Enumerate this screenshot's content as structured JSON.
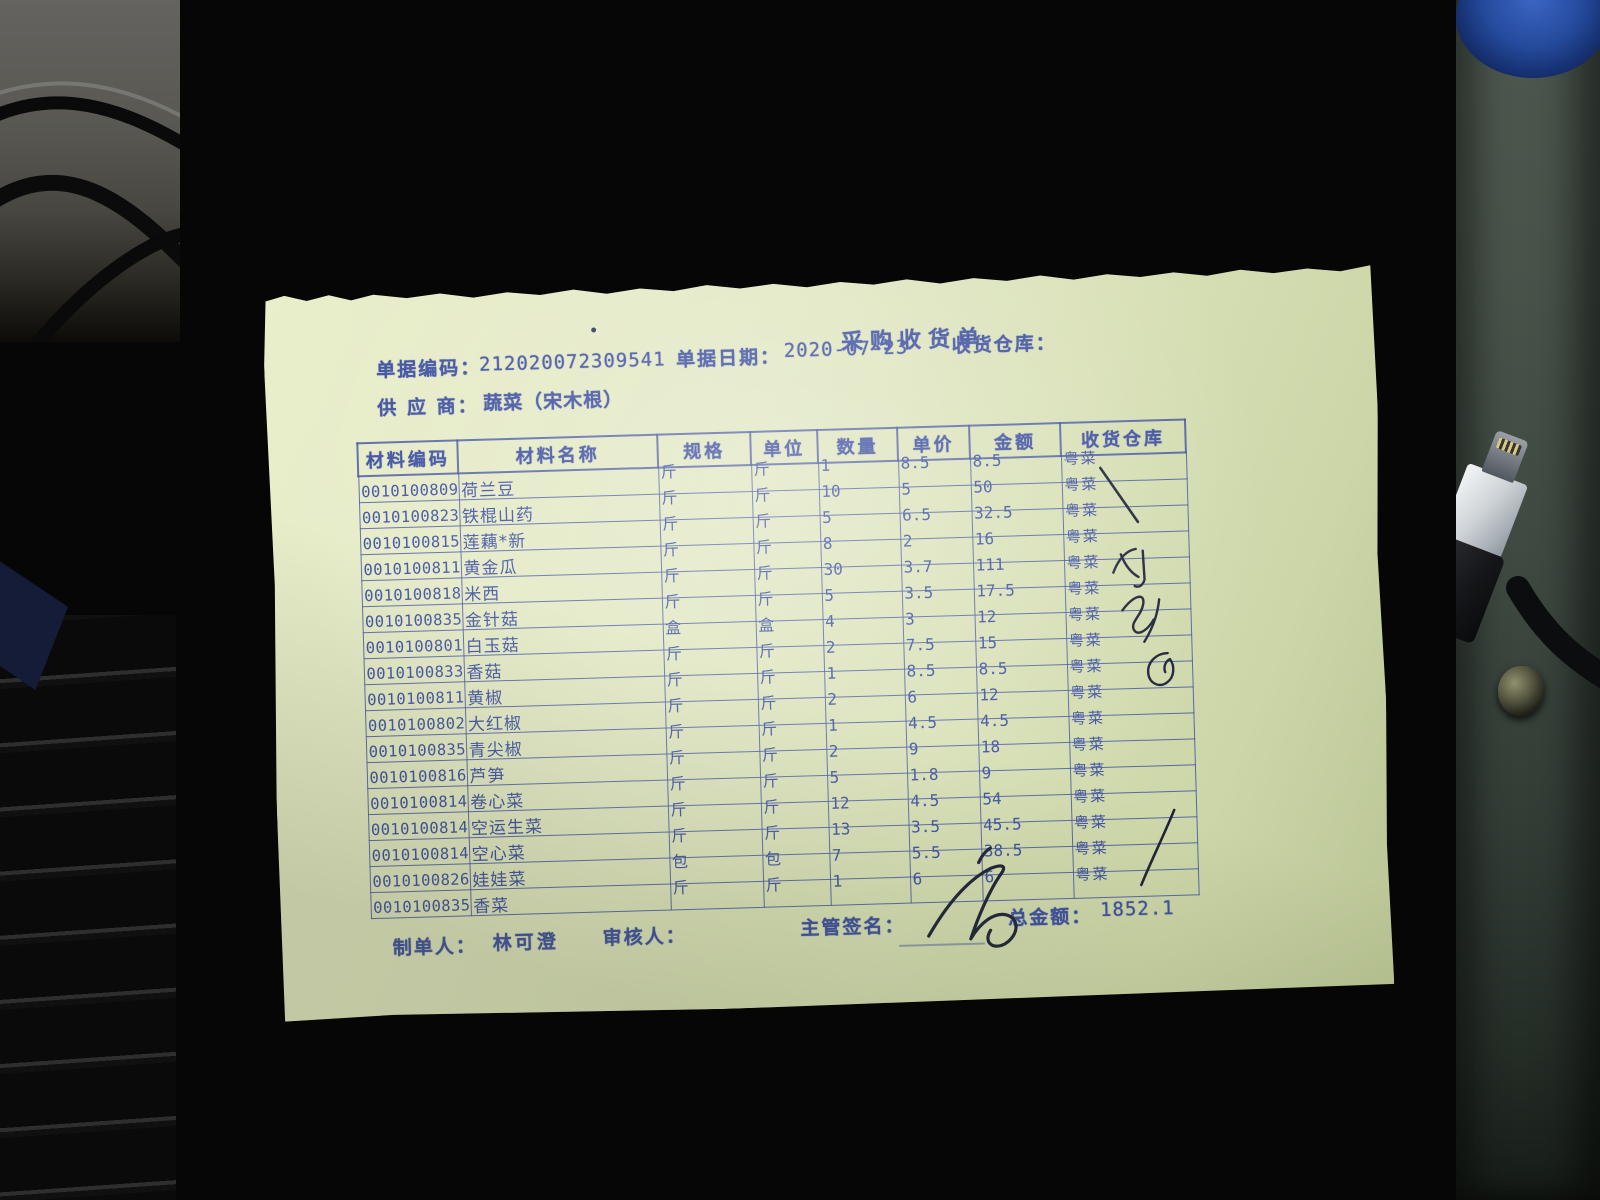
{
  "scene": {
    "background_color": "#060606",
    "wall_strip_color": "#3f4a42",
    "blue_object_color": "#2a4da8",
    "paper_color": "#dfe5bf",
    "print_ink_color": "#3e50a2",
    "handwriting_color": "#20243a"
  },
  "document": {
    "title": "采购收货单",
    "header": {
      "doc_code_label": "单据编码：",
      "doc_code": "212020072309541",
      "doc_date_label": "单据日期：",
      "doc_date": "2020-07-23",
      "warehouse_label": "收货仓库：",
      "supplier_label": "供 应 商：",
      "supplier": "蔬菜（宋木根）"
    },
    "table": {
      "headers": [
        "材料编码",
        "材料名称",
        "规格",
        "单位",
        "数量",
        "单价",
        "金额",
        "收货仓库"
      ],
      "rows": [
        [
          "0010100809",
          "荷兰豆",
          "斤",
          "斤",
          "1",
          "8.5",
          "8.5",
          "粤菜"
        ],
        [
          "0010100823",
          "铁棍山药",
          "斤",
          "斤",
          "10",
          "5",
          "50",
          "粤菜"
        ],
        [
          "0010100815",
          "莲藕*新",
          "斤",
          "斤",
          "5",
          "6.5",
          "32.5",
          "粤菜"
        ],
        [
          "0010100811",
          "黄金瓜",
          "斤",
          "斤",
          "8",
          "2",
          "16",
          "粤菜"
        ],
        [
          "0010100818",
          "米西",
          "斤",
          "斤",
          "30",
          "3.7",
          "111",
          "粤菜"
        ],
        [
          "0010100835",
          "金针菇",
          "斤",
          "斤",
          "5",
          "3.5",
          "17.5",
          "粤菜"
        ],
        [
          "0010100801",
          "白玉菇",
          "盒",
          "盒",
          "4",
          "3",
          "12",
          "粤菜"
        ],
        [
          "0010100833",
          "香菇",
          "斤",
          "斤",
          "2",
          "7.5",
          "15",
          "粤菜"
        ],
        [
          "0010100811",
          "黄椒",
          "斤",
          "斤",
          "1",
          "8.5",
          "8.5",
          "粤菜"
        ],
        [
          "0010100802",
          "大红椒",
          "斤",
          "斤",
          "2",
          "6",
          "12",
          "粤菜"
        ],
        [
          "0010100835",
          "青尖椒",
          "斤",
          "斤",
          "1",
          "4.5",
          "4.5",
          "粤菜"
        ],
        [
          "0010100816",
          "芦笋",
          "斤",
          "斤",
          "2",
          "9",
          "18",
          "粤菜"
        ],
        [
          "0010100814",
          "卷心菜",
          "斤",
          "斤",
          "5",
          "1.8",
          "9",
          "粤菜"
        ],
        [
          "0010100814",
          "空运生菜",
          "斤",
          "斤",
          "12",
          "4.5",
          "54",
          "粤菜"
        ],
        [
          "0010100814",
          "空心菜",
          "斤",
          "斤",
          "13",
          "3.5",
          "45.5",
          "粤菜"
        ],
        [
          "0010100826",
          "娃娃菜",
          "包",
          "包",
          "7",
          "5.5",
          "38.5",
          "粤菜"
        ],
        [
          "0010100835",
          "香菜",
          "斤",
          "斤",
          "1",
          "6",
          "6",
          "粤菜"
        ]
      ]
    },
    "footer": {
      "maker_label": "制单人：",
      "maker": "林可澄",
      "checker_label": "审核人：",
      "manager_label": "主管签名：",
      "total_label": "总金额：",
      "total": "1852.1"
    }
  }
}
